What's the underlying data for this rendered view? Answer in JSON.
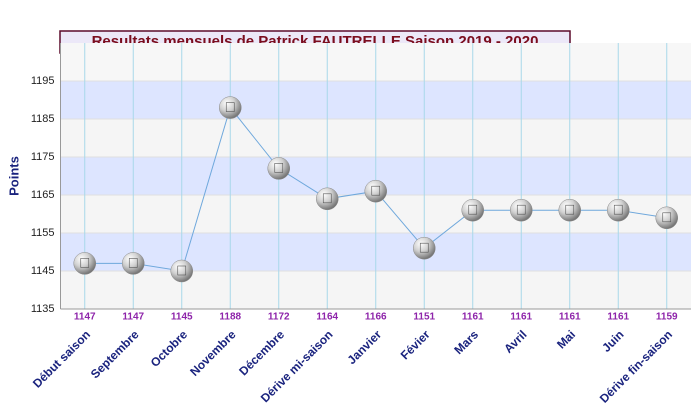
{
  "chart_data": {
    "type": "line",
    "title": "Resultats mensuels de Patrick FAUTRELLE Saison 2019 - 2020",
    "y_label": "Points",
    "categories": [
      "Début saison",
      "Septembre",
      "Octobre",
      "Novembre",
      "Décembre",
      "Dérive mi-saison",
      "Janvier",
      "Févier",
      "Mars",
      "Avril",
      "Mai",
      "Juin",
      "Dérive fin-saison"
    ],
    "values": [
      1147,
      1147,
      1145,
      1188,
      1172,
      1164,
      1166,
      1151,
      1161,
      1161,
      1161,
      1161,
      1159
    ],
    "color": "#6fa8dc",
    "ylim": [
      1135,
      1205
    ],
    "yticks": [
      1135,
      1145,
      1155,
      1165,
      1175,
      1185,
      1195
    ],
    "grid": true
  }
}
